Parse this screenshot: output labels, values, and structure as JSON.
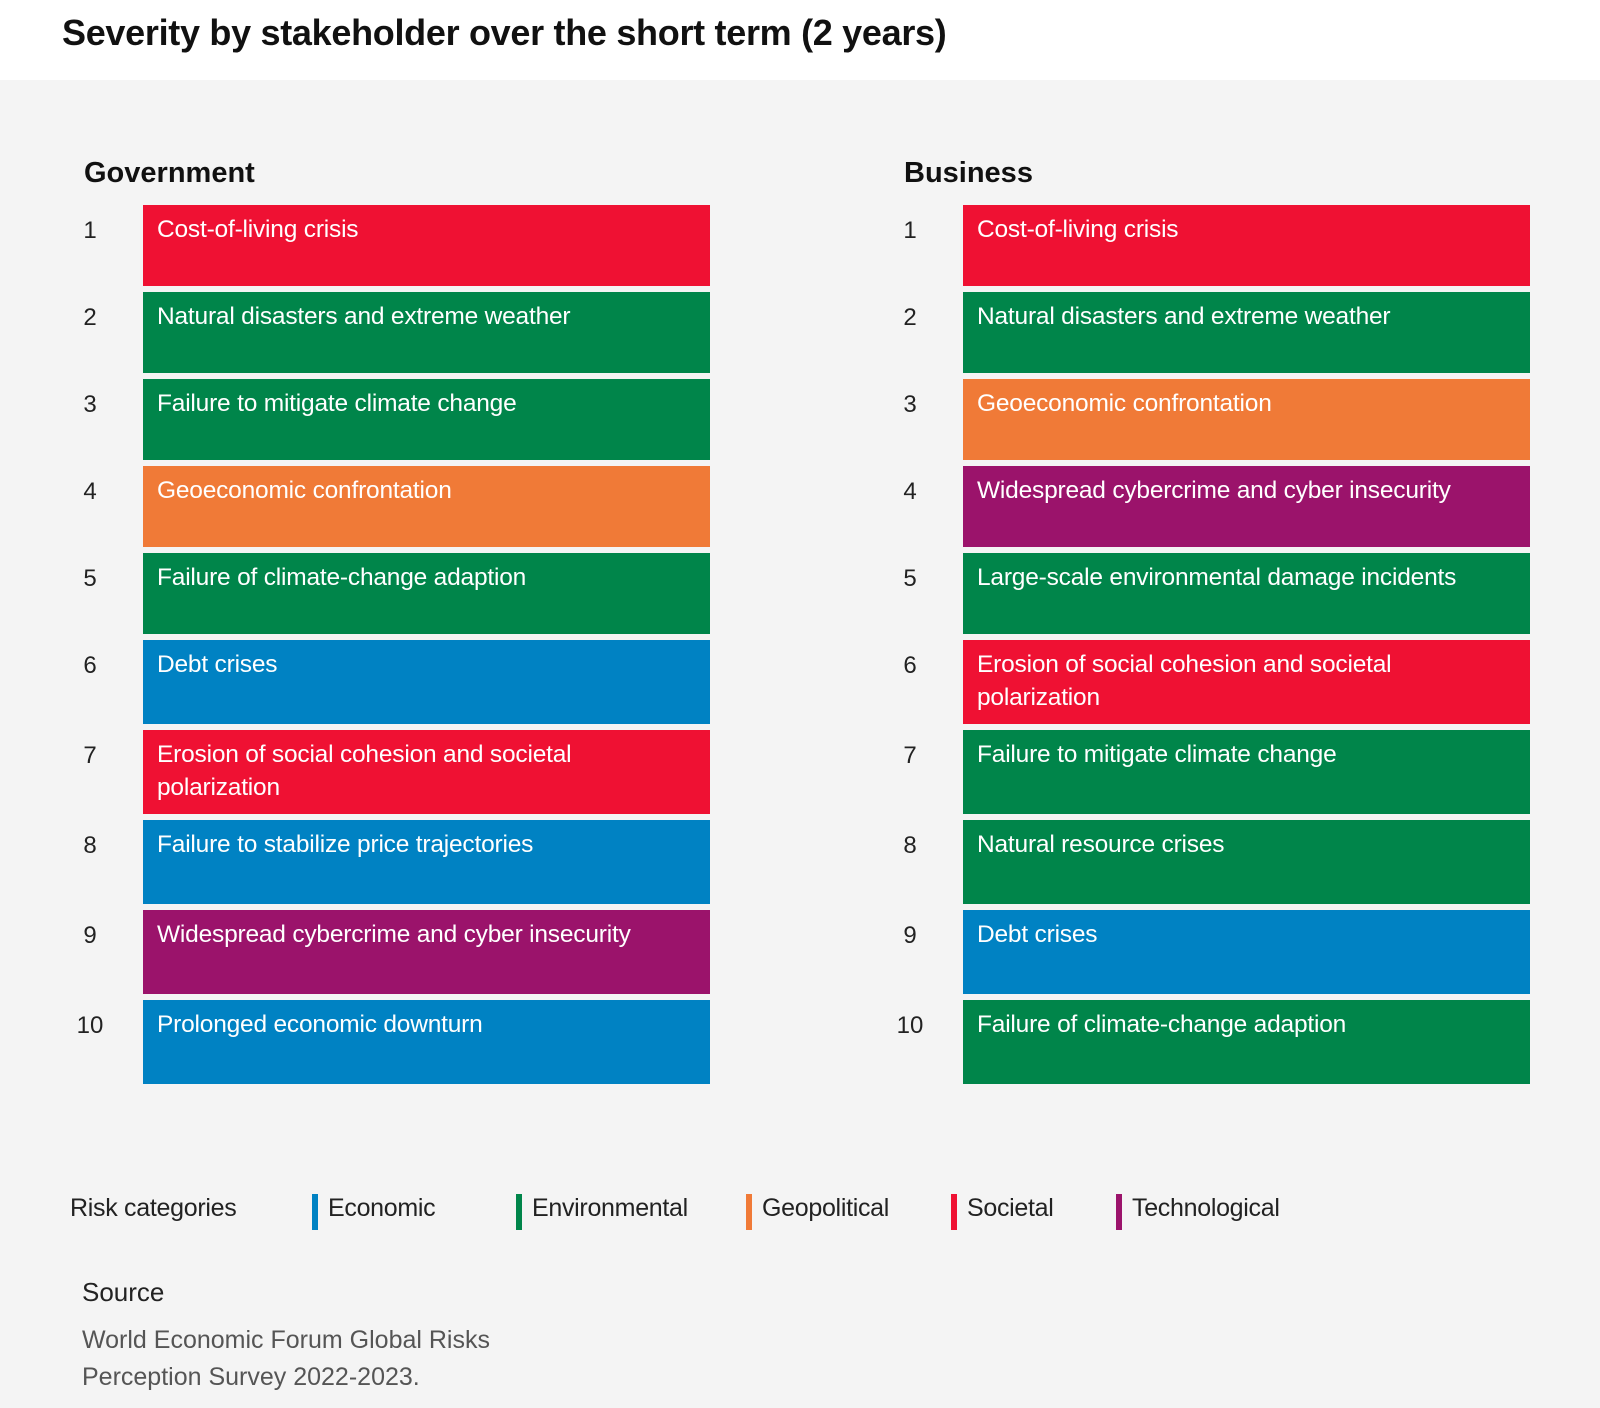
{
  "chart_data": {
    "type": "table",
    "title": "Severity by stakeholder over the short term (2 years)",
    "panels": [
      {
        "name": "Government",
        "rows": [
          {
            "rank": "1",
            "label": "Cost-of-living crisis",
            "category": "Societal"
          },
          {
            "rank": "2",
            "label": "Natural disasters and extreme weather",
            "category": "Environmental"
          },
          {
            "rank": "3",
            "label": "Failure to mitigate climate change",
            "category": "Environmental"
          },
          {
            "rank": "4",
            "label": "Geoeconomic confrontation",
            "category": "Geopolitical"
          },
          {
            "rank": "5",
            "label": "Failure of climate-change adaption",
            "category": "Environmental"
          },
          {
            "rank": "6",
            "label": "Debt crises",
            "category": "Economic"
          },
          {
            "rank": "7",
            "label": "Erosion of social cohesion and societal polarization",
            "category": "Societal"
          },
          {
            "rank": "8",
            "label": "Failure to stabilize price trajectories",
            "category": "Economic"
          },
          {
            "rank": "9",
            "label": "Widespread cybercrime and cyber insecurity",
            "category": "Technological"
          },
          {
            "rank": "10",
            "label": "Prolonged economic downturn",
            "category": "Economic"
          }
        ]
      },
      {
        "name": "Business",
        "rows": [
          {
            "rank": "1",
            "label": "Cost-of-living crisis",
            "category": "Societal"
          },
          {
            "rank": "2",
            "label": "Natural disasters and extreme weather",
            "category": "Environmental"
          },
          {
            "rank": "3",
            "label": "Geoeconomic confrontation",
            "category": "Geopolitical"
          },
          {
            "rank": "4",
            "label": "Widespread cybercrime and cyber insecurity",
            "category": "Technological"
          },
          {
            "rank": "5",
            "label": "Large-scale environmental damage incidents",
            "category": "Environmental"
          },
          {
            "rank": "6",
            "label": "Erosion of social cohesion and societal polarization",
            "category": "Societal"
          },
          {
            "rank": "7",
            "label": "Failure to mitigate climate change",
            "category": "Environmental"
          },
          {
            "rank": "8",
            "label": "Natural resource crises",
            "category": "Environmental"
          },
          {
            "rank": "9",
            "label": "Debt crises",
            "category": "Economic"
          },
          {
            "rank": "10",
            "label": "Failure of climate-change adaption",
            "category": "Environmental"
          }
        ]
      }
    ],
    "legend": {
      "label": "Risk categories",
      "items": [
        {
          "name": "Economic",
          "color": "#0082c3"
        },
        {
          "name": "Environmental",
          "color": "#00854a"
        },
        {
          "name": "Geopolitical",
          "color": "#f07a37"
        },
        {
          "name": "Societal",
          "color": "#ef1133"
        },
        {
          "name": "Technological",
          "color": "#9b136b"
        }
      ]
    }
  },
  "source": {
    "heading": "Source",
    "text": "World Economic Forum Global Risks Perception Survey 2022-2023."
  }
}
